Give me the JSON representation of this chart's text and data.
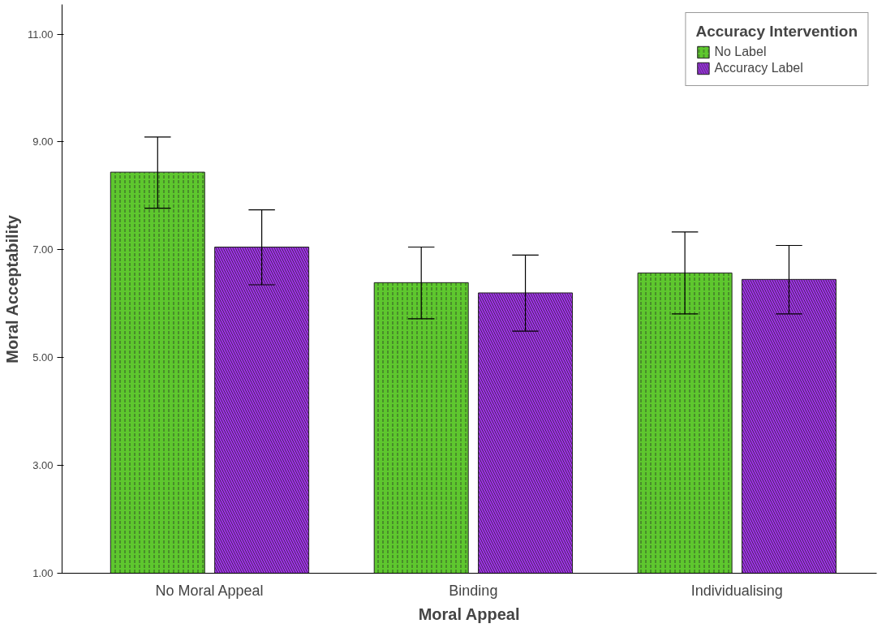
{
  "chart_data": {
    "type": "bar",
    "xlabel": "Moral Appeal",
    "ylabel": "Moral Acceptability",
    "legend_title": "Accuracy Intervention",
    "categories": [
      "No Moral Appeal",
      "Binding",
      "Individualising"
    ],
    "series": [
      {
        "name": "No Label",
        "color": "#5ec72e",
        "values": [
          8.44,
          6.39,
          6.57
        ],
        "errors": [
          [
            7.77,
            9.09
          ],
          [
            5.72,
            7.05
          ],
          [
            5.81,
            7.33
          ]
        ]
      },
      {
        "name": "Accuracy Label",
        "color": "#a032e8",
        "values": [
          7.05,
          6.2,
          6.45
        ],
        "errors": [
          [
            6.35,
            7.74
          ],
          [
            5.49,
            6.9
          ],
          [
            5.81,
            7.08
          ]
        ]
      }
    ],
    "ylim": [
      1,
      11.55
    ],
    "yticks": [
      {
        "value": 1,
        "label": "1.00"
      },
      {
        "value": 3,
        "label": "3.00"
      },
      {
        "value": 5,
        "label": "5.00"
      },
      {
        "value": 7,
        "label": "7.00"
      },
      {
        "value": 9,
        "label": "9.00"
      },
      {
        "value": 11,
        "label": "11.00"
      }
    ],
    "grid": false,
    "legend": "top right"
  }
}
